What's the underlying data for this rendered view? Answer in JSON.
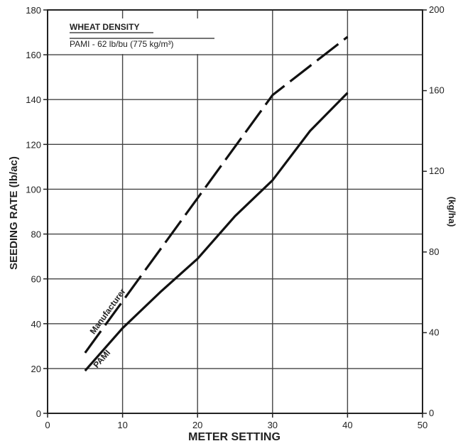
{
  "chart_data": {
    "type": "line",
    "title": "",
    "xlabel": "METER SETTING",
    "ylabel": "SEEDING RATE (lb/ac)",
    "y2label": "(kg/ha)",
    "xlim": [
      0,
      50
    ],
    "ylim": [
      0,
      180
    ],
    "y2lim": [
      0,
      200
    ],
    "grid": true,
    "x_ticks": [
      "0",
      "10",
      "20",
      "30",
      "40",
      "50"
    ],
    "y_ticks": [
      "0",
      "20",
      "40",
      "60",
      "80",
      "100",
      "120",
      "140",
      "160",
      "180"
    ],
    "y2_ticks": [
      "0",
      "40",
      "80",
      "120",
      "160",
      "200"
    ],
    "legend": {
      "title": "WHEAT DENSITY",
      "subtitle": "PAMI - 62 lb/bu (775 kg/m³)",
      "position": "top-left"
    },
    "series": [
      {
        "name": "Manufacturer",
        "style": "dashed",
        "x": [
          5,
          10,
          20,
          30,
          40
        ],
        "y": [
          27,
          50,
          96,
          142,
          168
        ]
      },
      {
        "name": "PAMI",
        "style": "solid",
        "x": [
          5,
          10,
          15,
          20,
          25,
          30,
          35,
          40
        ],
        "y": [
          19,
          38,
          54,
          69,
          88,
          104,
          126,
          143
        ]
      }
    ]
  }
}
